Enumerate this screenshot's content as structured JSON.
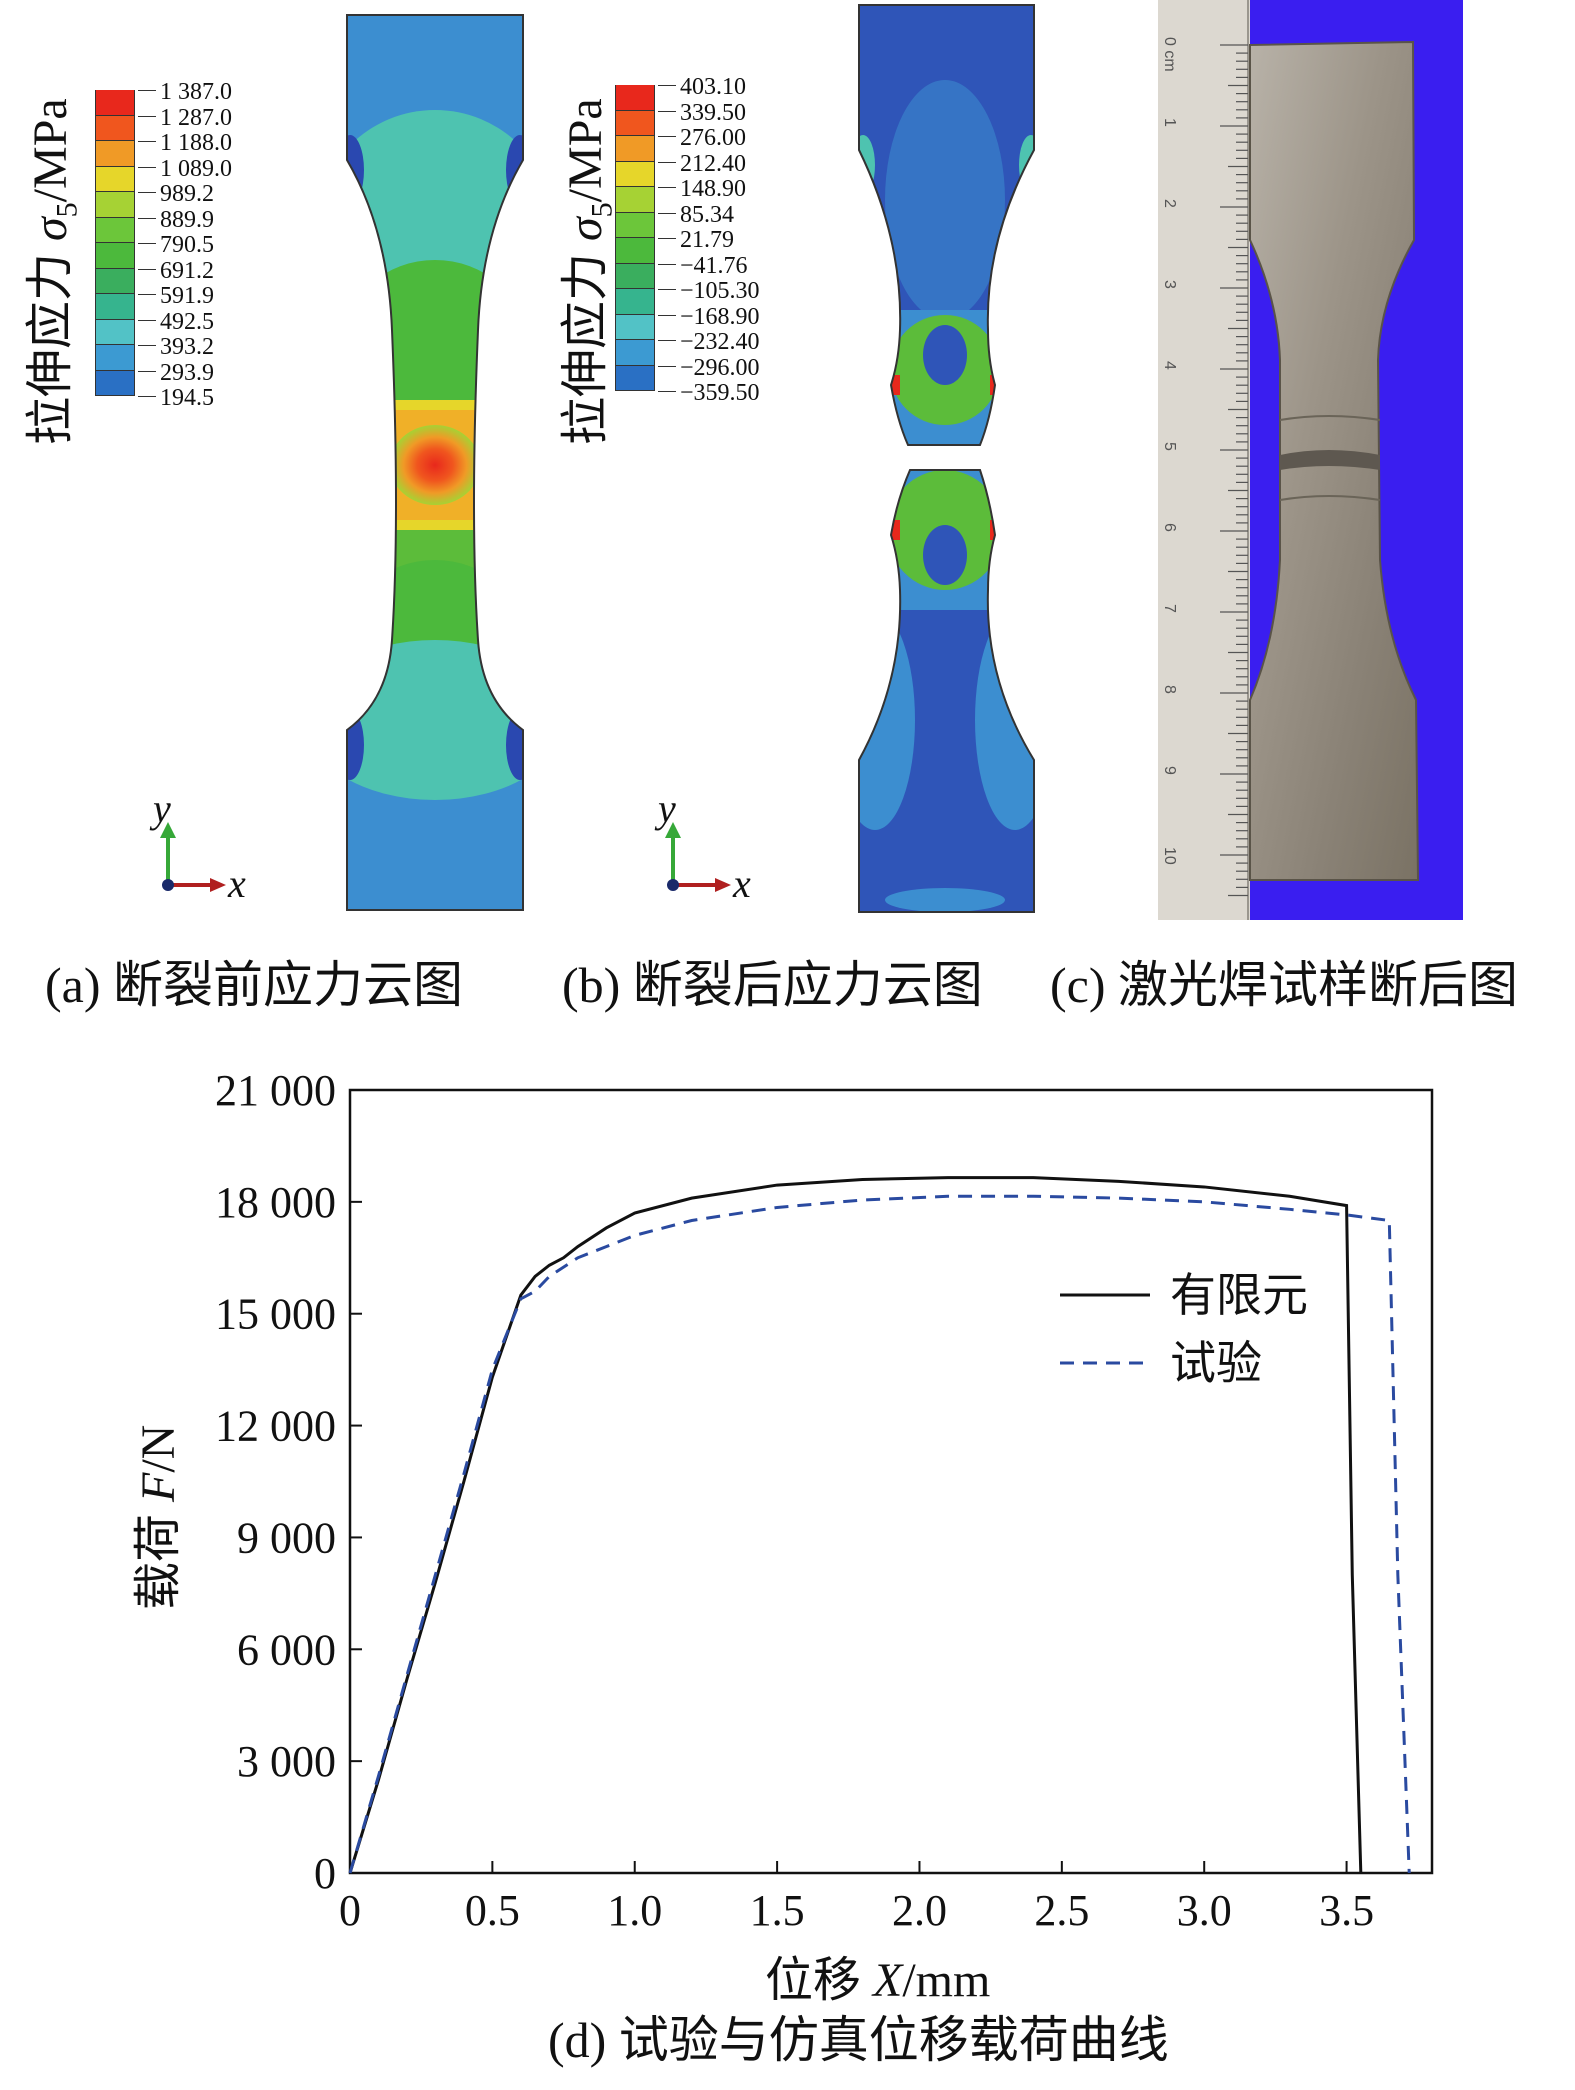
{
  "panels": {
    "a": {
      "caption": "(a) 断裂前应力云图",
      "legend_title_cn": "拉伸应力",
      "legend_symbol": "σ",
      "legend_subscript": "5",
      "legend_unit": "/MPa",
      "legend_values": [
        "1 387.0",
        "1 287.0",
        "1 188.0",
        "1 089.0",
        "989.2",
        "889.9",
        "790.5",
        "691.2",
        "591.9",
        "492.5",
        "393.2",
        "293.9",
        "194.5"
      ],
      "axis_y": "y",
      "axis_x": "x"
    },
    "b": {
      "caption": "(b) 断裂后应力云图",
      "legend_title_cn": "拉伸应力",
      "legend_symbol": "σ",
      "legend_subscript": "5",
      "legend_unit": "/MPa",
      "legend_values": [
        "403.10",
        "339.50",
        "276.00",
        "212.40",
        "148.90",
        "85.34",
        "21.79",
        "−41.76",
        "−105.30",
        "−168.90",
        "−232.40",
        "−296.00",
        "−359.50"
      ],
      "axis_y": "y",
      "axis_x": "x"
    },
    "c": {
      "caption": "(c) 激光焊试样断后图",
      "ruler_labels": [
        "0 cm",
        "1",
        "2",
        "3",
        "4",
        "5",
        "6",
        "7",
        "8",
        "9",
        "10"
      ]
    }
  },
  "legend_colors": [
    "#e8281c",
    "#f0561e",
    "#f09a26",
    "#e6d62a",
    "#a6d234",
    "#6cc63a",
    "#4cb93c",
    "#3aae5e",
    "#36b48e",
    "#52c2c6",
    "#3c9ad2",
    "#2a70c4",
    "#2a48b0"
  ],
  "chart_data": {
    "type": "line",
    "caption": "(d) 试验与仿真位移载荷曲线",
    "xlabel_cn": "位移 ",
    "xlabel_sym": "X",
    "xlabel_unit": "/mm",
    "ylabel_cn": "载荷 ",
    "ylabel_sym": "F",
    "ylabel_unit": "/N",
    "xlim": [
      0,
      3.8
    ],
    "ylim": [
      0,
      21000
    ],
    "xticks": [
      0,
      0.5,
      1.0,
      1.5,
      2.0,
      2.5,
      3.0,
      3.5
    ],
    "xtick_labels": [
      "0",
      "0.5",
      "1.0",
      "1.5",
      "2.0",
      "2.5",
      "3.0",
      "3.5"
    ],
    "yticks": [
      0,
      3000,
      6000,
      9000,
      12000,
      15000,
      18000,
      21000
    ],
    "ytick_labels": [
      "0",
      "3 000",
      "6 000",
      "9 000",
      "12 000",
      "15 000",
      "18 000",
      "21 000"
    ],
    "legend_position": "right",
    "series": [
      {
        "name": "有限元",
        "style": "solid",
        "color": "#111111",
        "x": [
          0,
          0.1,
          0.2,
          0.3,
          0.4,
          0.5,
          0.6,
          0.65,
          0.7,
          0.75,
          0.8,
          0.9,
          1.0,
          1.2,
          1.5,
          1.8,
          2.1,
          2.4,
          2.7,
          3.0,
          3.3,
          3.5,
          3.52,
          3.55
        ],
        "y": [
          0,
          2500,
          5200,
          7800,
          10500,
          13300,
          15500,
          16000,
          16300,
          16500,
          16800,
          17300,
          17700,
          18100,
          18450,
          18600,
          18650,
          18650,
          18550,
          18400,
          18150,
          17900,
          8000,
          0
        ]
      },
      {
        "name": "试验",
        "style": "dashed",
        "color": "#2a4aa0",
        "x": [
          0,
          0.1,
          0.2,
          0.3,
          0.4,
          0.5,
          0.6,
          0.65,
          0.7,
          0.8,
          0.9,
          1.0,
          1.2,
          1.5,
          1.8,
          2.1,
          2.4,
          2.7,
          3.0,
          3.3,
          3.5,
          3.65,
          3.68,
          3.72
        ],
        "y": [
          0,
          2600,
          5300,
          8000,
          10700,
          13500,
          15400,
          15600,
          16000,
          16500,
          16800,
          17100,
          17500,
          17850,
          18050,
          18150,
          18150,
          18100,
          18000,
          17800,
          17650,
          17500,
          8000,
          0
        ]
      }
    ]
  }
}
